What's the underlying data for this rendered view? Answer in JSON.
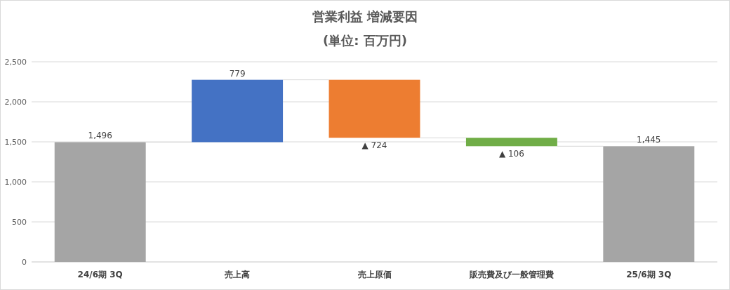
{
  "chart_data": {
    "type": "bar",
    "title": "営業利益 増減要因",
    "subtitle": "(単位: 百万円)",
    "categories": [
      "24/6期 3Q",
      "売上高",
      "売上原価",
      "販売費及び一般管理費",
      "25/6期 3Q"
    ],
    "values": [
      1496,
      779,
      -724,
      -106,
      1445
    ],
    "base": [
      0,
      1496,
      2275,
      1551,
      0
    ],
    "colors": [
      "#a5a5a5",
      "#4472c4",
      "#ed7d31",
      "#70ad47",
      "#a5a5a5"
    ],
    "value_labels": [
      "1,496",
      "779",
      "▲ 724",
      "▲ 106",
      "1,445"
    ],
    "ylim": [
      0,
      2500
    ],
    "yticks": [
      {
        "value": 0,
        "label": "0"
      },
      {
        "value": 500,
        "label": "500"
      },
      {
        "value": 1000,
        "label": "1,000"
      },
      {
        "value": 1500,
        "label": "1,500"
      },
      {
        "value": 2000,
        "label": "2,000"
      },
      {
        "value": 2500,
        "label": "2,500"
      }
    ],
    "grid": "y"
  }
}
